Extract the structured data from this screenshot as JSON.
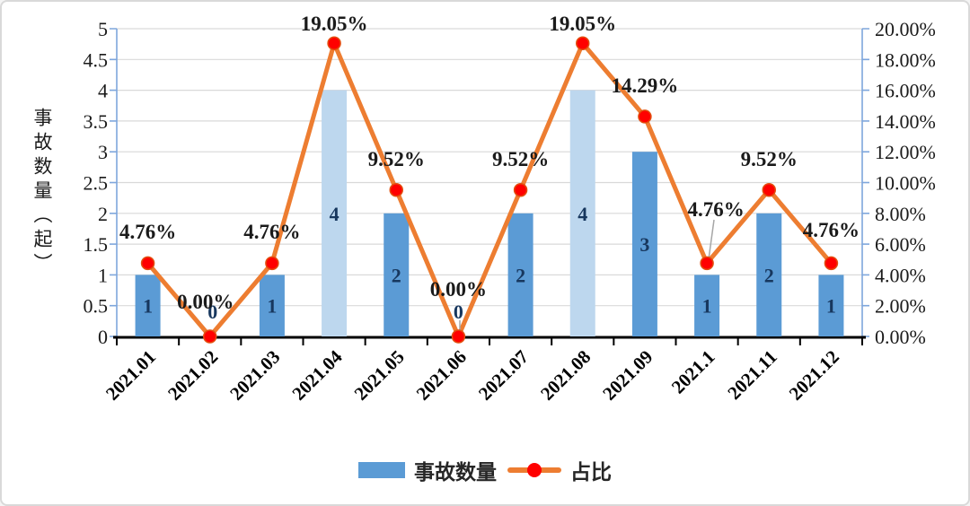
{
  "canvas": {
    "background": "#ffffff",
    "border_color": "#d9d9d9"
  },
  "chart_data": {
    "type": "combo",
    "categories": [
      "2021.01",
      "2021.02",
      "2021.03",
      "2021.04",
      "2021.05",
      "2021.06",
      "2021.07",
      "2021.08",
      "2021.09",
      "2021.1",
      "2021.11",
      "2021.12"
    ],
    "series": [
      {
        "name": "事故数量",
        "type": "bar",
        "values": [
          1,
          0,
          1,
          4,
          2,
          0,
          2,
          4,
          3,
          1,
          2,
          1
        ],
        "labels": [
          "1",
          "0",
          "1",
          "4",
          "2",
          "0",
          "2",
          "4",
          "3",
          "1",
          "2",
          "1"
        ],
        "colors": [
          "#5B9BD5",
          "#5B9BD5",
          "#5B9BD5",
          "#BDD7EE",
          "#5B9BD5",
          "#5B9BD5",
          "#5B9BD5",
          "#BDD7EE",
          "#5B9BD5",
          "#5B9BD5",
          "#5B9BD5",
          "#5B9BD5"
        ]
      },
      {
        "name": "占比",
        "type": "line",
        "values": [
          4.76,
          0,
          4.76,
          19.05,
          9.52,
          0,
          9.52,
          19.05,
          14.29,
          4.76,
          9.52,
          4.76
        ],
        "labels": [
          "4.76%",
          "0.00%",
          "4.76%",
          "19.05%",
          "9.52%",
          "0.00%",
          "9.52%",
          "19.05%",
          "14.29%",
          "4.76%",
          "9.52%",
          "4.76%"
        ]
      }
    ],
    "left_axis": {
      "title": "事故数量（起）",
      "min": 0,
      "max": 5,
      "ticks": [
        "5",
        "4.5",
        "4",
        "3.5",
        "3",
        "2.5",
        "2",
        "1.5",
        "1",
        "0.5",
        "0"
      ]
    },
    "right_axis": {
      "min": 0,
      "max": 20,
      "ticks": [
        "20.00%",
        "18.00%",
        "16.00%",
        "14.00%",
        "12.00%",
        "10.00%",
        "8.00%",
        "6.00%",
        "4.00%",
        "2.00%",
        "0.00%"
      ]
    },
    "colors": {
      "bar": "#5B9BD5",
      "bar_highlight": "#BDD7EE",
      "line": "#ED7D31",
      "marker": "#FF0000",
      "marker_edge": "#E34E0F",
      "grid": "#D9D9D9",
      "value_axis": "#7EA6DC",
      "category_axis": "#000000",
      "bar_label": "#17375E",
      "data_label": "#1a1a1a",
      "tick_label": "#1a1a1a",
      "leader": "#A6A6A6"
    },
    "grid": "on",
    "legend_position": "bottom",
    "legend": {
      "items": [
        {
          "label": "事故数量",
          "swatch": "bar"
        },
        {
          "label": "占比",
          "swatch": "line"
        }
      ]
    }
  }
}
